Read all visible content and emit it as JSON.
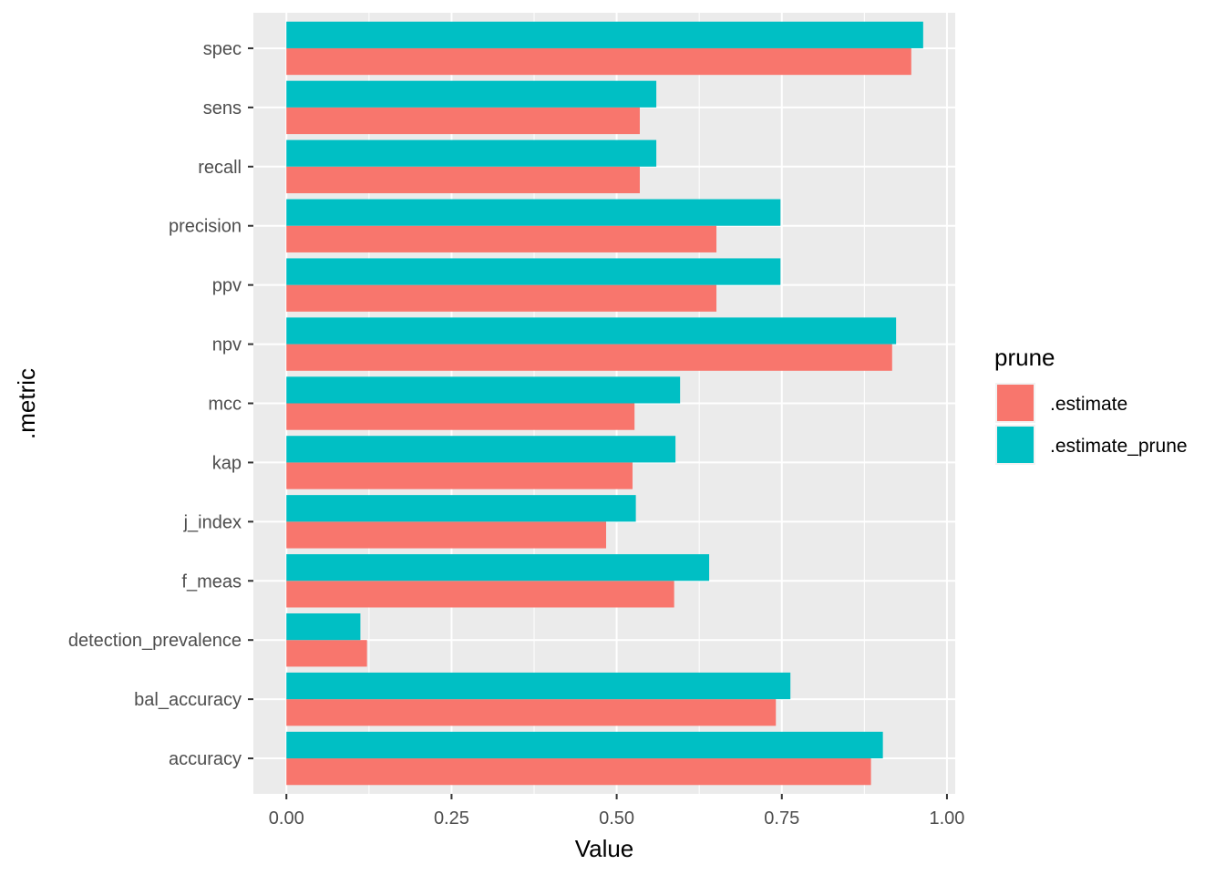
{
  "chart_data": {
    "type": "bar",
    "orientation": "horizontal",
    "categories": [
      "accuracy",
      "bal_accuracy",
      "detection_prevalence",
      "f_meas",
      "j_index",
      "kap",
      "mcc",
      "npv",
      "ppv",
      "precision",
      "recall",
      "sens",
      "spec"
    ],
    "series": [
      {
        "name": ".estimate",
        "color": "#F8766D",
        "values": [
          0.885,
          0.741,
          0.122,
          0.587,
          0.484,
          0.524,
          0.527,
          0.917,
          0.651,
          0.651,
          0.535,
          0.535,
          0.946
        ]
      },
      {
        "name": ".estimate_prune",
        "color": "#00BFC4",
        "values": [
          0.903,
          0.763,
          0.112,
          0.64,
          0.529,
          0.589,
          0.596,
          0.923,
          0.748,
          0.748,
          0.56,
          0.56,
          0.964
        ]
      }
    ],
    "xlabel": "Value",
    "ylabel": ".metric",
    "xlim": [
      -0.05,
      1.0125
    ],
    "x_ticks": [
      0.0,
      0.25,
      0.5,
      0.75,
      1.0
    ],
    "x_tick_labels": [
      "0.00",
      "0.25",
      "0.50",
      "0.75",
      "1.00"
    ],
    "legend": {
      "title": "prune",
      "position": "right",
      "entries": [
        ".estimate",
        ".estimate_prune"
      ]
    },
    "grid": true,
    "panel_background": "#EBEBEB"
  }
}
